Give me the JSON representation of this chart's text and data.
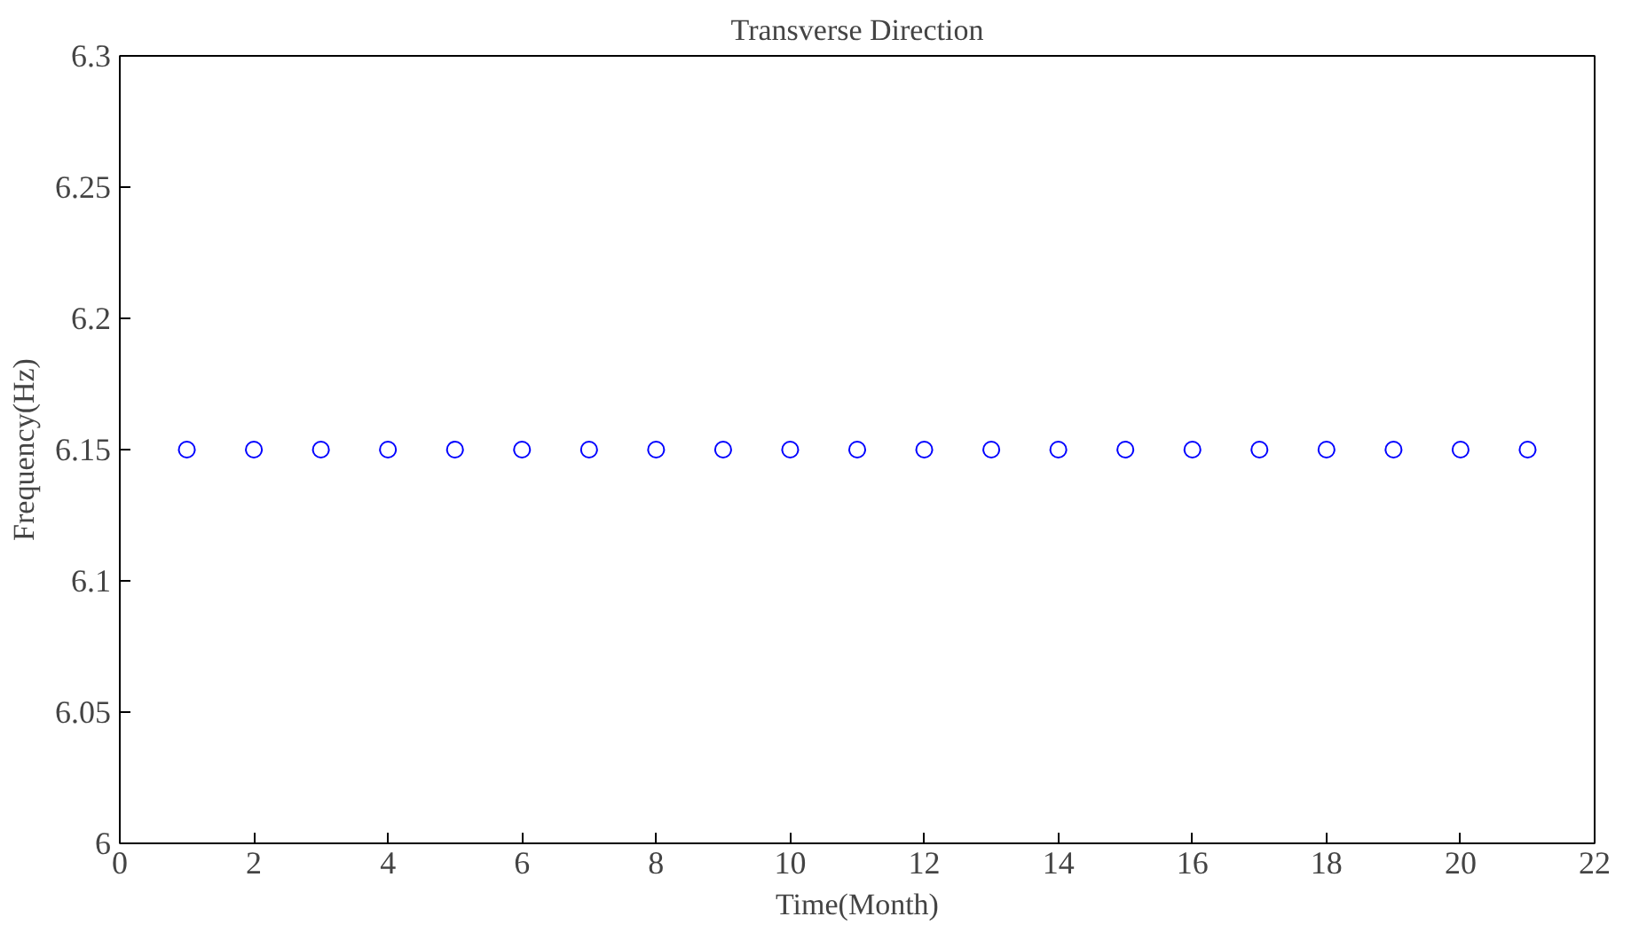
{
  "chart_data": {
    "type": "scatter",
    "title": "Transverse Direction",
    "xlabel": "Time(Month)",
    "ylabel": "Frequency(Hz)",
    "x": [
      1,
      2,
      3,
      4,
      5,
      6,
      7,
      8,
      9,
      10,
      11,
      12,
      13,
      14,
      15,
      16,
      17,
      18,
      19,
      20,
      21
    ],
    "series": [
      {
        "color": "#0000ff",
        "values": [
          6.15,
          6.15,
          6.15,
          6.15,
          6.15,
          6.15,
          6.15,
          6.15,
          6.15,
          6.15,
          6.15,
          6.15,
          6.15,
          6.15,
          6.15,
          6.15,
          6.15,
          6.15,
          6.15,
          6.15,
          6.15
        ]
      }
    ],
    "xlim": [
      0,
      22
    ],
    "xticks": [
      0,
      2,
      4,
      6,
      8,
      10,
      12,
      14,
      16,
      18,
      20,
      22
    ],
    "ylim": [
      6,
      6.3
    ],
    "yticks": [
      6,
      6.05,
      6.1,
      6.15,
      6.2,
      6.25,
      6.3
    ],
    "grid": false,
    "marker": "circle"
  }
}
